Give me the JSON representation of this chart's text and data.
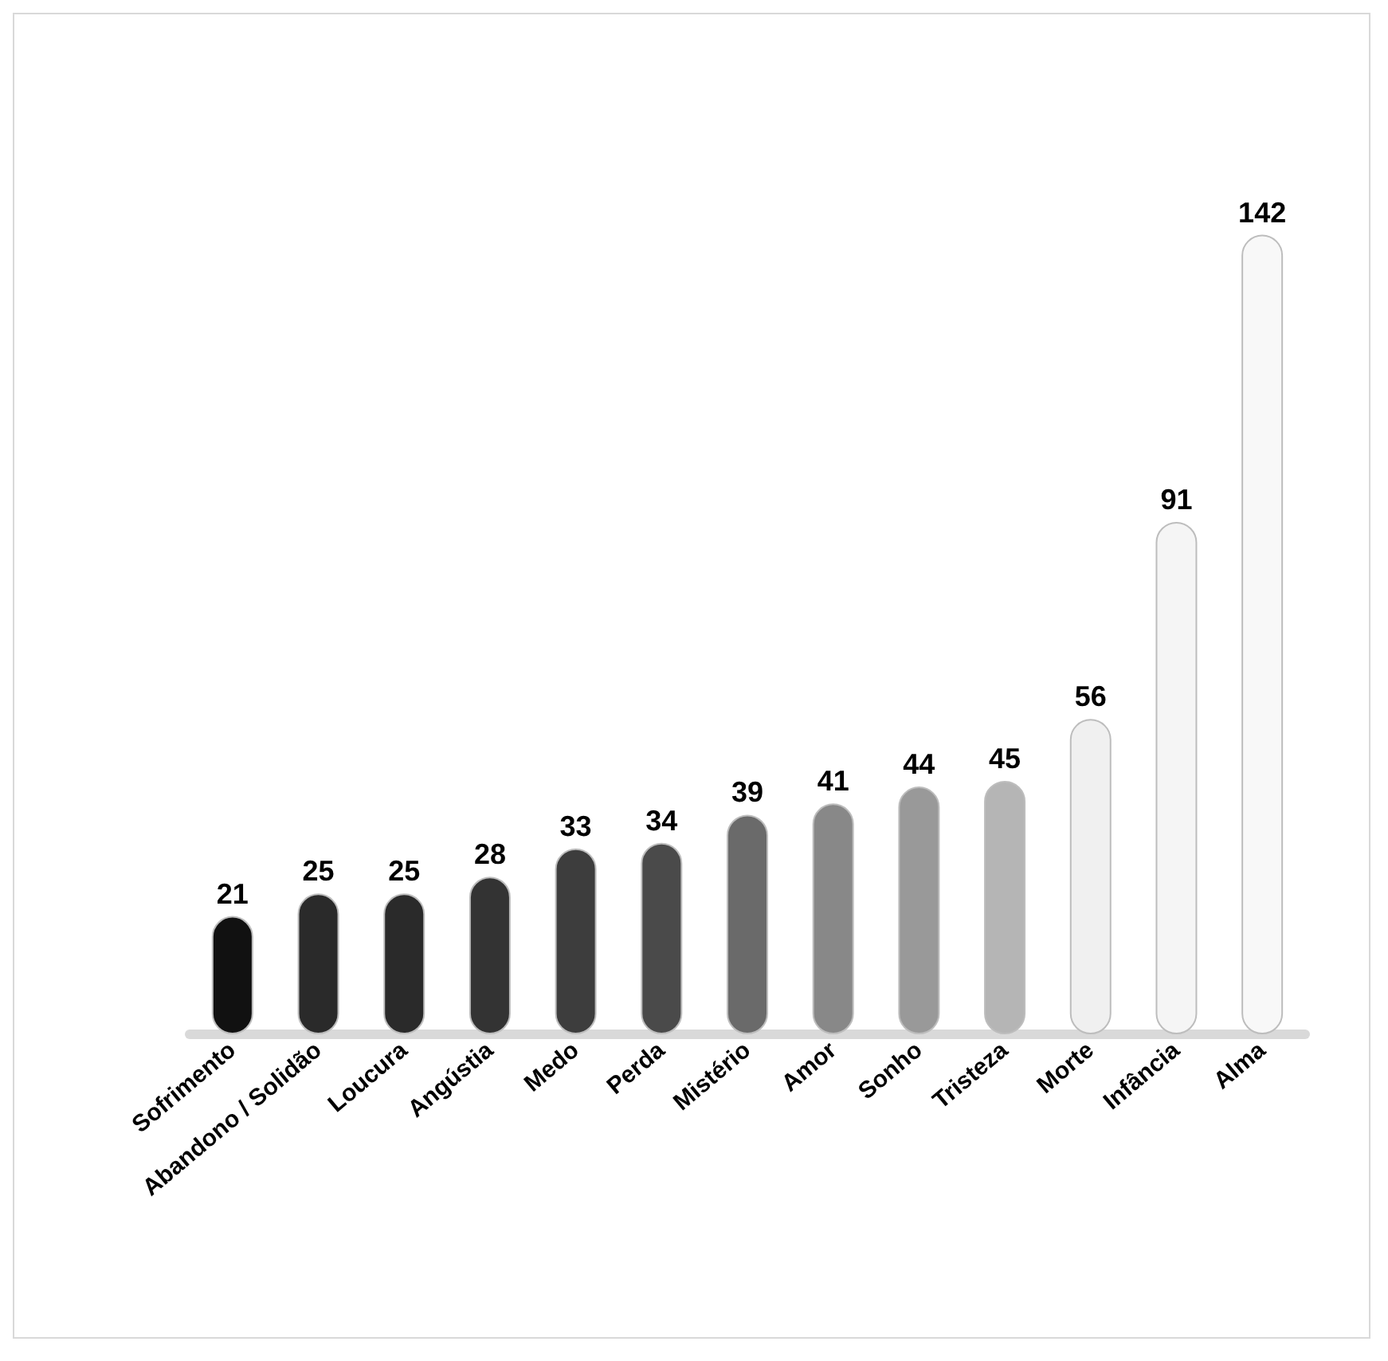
{
  "chart_data": {
    "type": "bar",
    "categories": [
      "Sofrimento",
      "Abandono / Solidão",
      "Loucura",
      "Angústia",
      "Medo",
      "Perda",
      "Mistério",
      "Amor",
      "Sonho",
      "Tristeza",
      "Morte",
      "Infância",
      "Alma"
    ],
    "values": [
      21,
      25,
      25,
      28,
      33,
      34,
      39,
      41,
      44,
      45,
      56,
      91,
      142
    ],
    "colors": [
      "#111111",
      "#2a2a2a",
      "#2a2a2a",
      "#333333",
      "#3d3d3d",
      "#4a4a4a",
      "#6a6a6a",
      "#888888",
      "#999999",
      "#b5b5b5",
      "#f0f0f0",
      "#f5f5f5",
      "#f8f8f8"
    ],
    "data_labels": true
  }
}
